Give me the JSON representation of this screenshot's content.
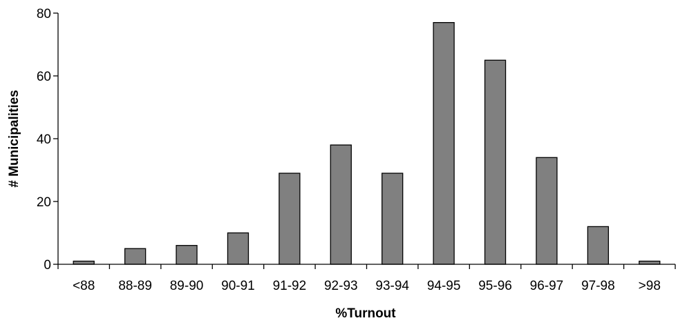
{
  "chart_data": {
    "type": "bar",
    "title": "",
    "xlabel": "%Turnout",
    "ylabel": "# Municipalities",
    "categories": [
      "<88",
      "88-89",
      "89-90",
      "90-91",
      "91-92",
      "92-93",
      "93-94",
      "94-95",
      "95-96",
      "96-97",
      "97-98",
      ">98"
    ],
    "values": [
      1,
      5,
      6,
      10,
      29,
      38,
      29,
      77,
      65,
      34,
      12,
      1
    ],
    "ylim": [
      0,
      80
    ],
    "yticks": [
      0,
      20,
      40,
      60,
      80
    ],
    "grid": false,
    "legend": "none",
    "colors": {
      "bar_fill": "#808080",
      "bar_stroke": "#000000",
      "axis": "#000000"
    }
  }
}
